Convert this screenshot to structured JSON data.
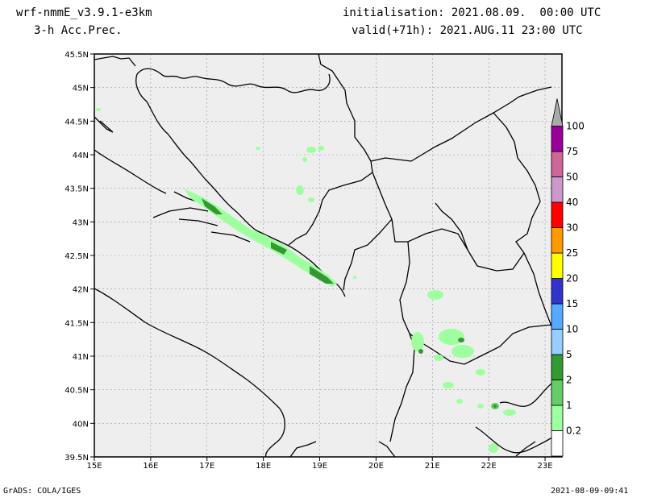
{
  "header": {
    "model": "wrf-nmmE_v3.9.1-e3km",
    "variable": "3-h Acc.Prec.",
    "init": "initialisation: 2021.08.09.  00:00 UTC",
    "valid": "valid(+71h): 2021.AUG.11 23:00 UTC"
  },
  "footer": {
    "left": "GrADS: COLA/IGES",
    "right": "2021-08-09-09:41"
  },
  "map": {
    "lat_labels": [
      "45.5N",
      "45N",
      "44.5N",
      "44N",
      "43.5N",
      "43N",
      "42.5N",
      "42N",
      "41.5N",
      "41N",
      "40.5N",
      "40N",
      "39.5N"
    ],
    "lon_labels": [
      "15E",
      "16E",
      "17E",
      "18E",
      "19E",
      "20E",
      "21E",
      "22E",
      "23E"
    ],
    "lat_range": [
      39.5,
      45.5
    ],
    "lon_range": [
      15,
      23.3
    ],
    "grid": true,
    "land_color": "#eeeeee"
  },
  "colorbar": {
    "levels": [
      "0.2",
      "1",
      "2",
      "5",
      "10",
      "15",
      "20",
      "25",
      "30",
      "40",
      "50",
      "75",
      "100"
    ],
    "colors": [
      "#ffffff",
      "#9eff9e",
      "#66cc66",
      "#339933",
      "#99ccff",
      "#55aaff",
      "#3333cc",
      "#ffff00",
      "#ff9900",
      "#ff0000",
      "#cc99cc",
      "#cc6699",
      "#990099",
      "#aaaaaa"
    ]
  }
}
